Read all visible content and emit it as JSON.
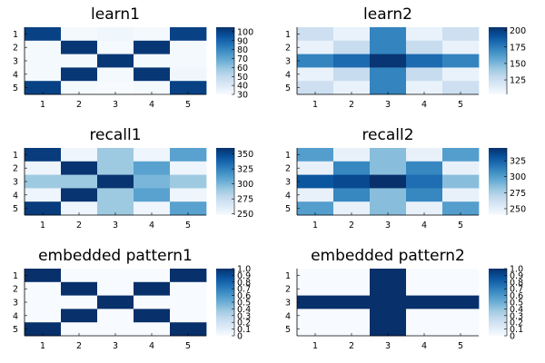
{
  "chart_data": [
    {
      "type": "heatmap",
      "title": "learn1",
      "x": [
        1,
        2,
        3,
        4,
        5
      ],
      "y": [
        1,
        2,
        3,
        4,
        5
      ],
      "z": [
        [
          100,
          31,
          33,
          31,
          100
        ],
        [
          31,
          103,
          31,
          103,
          31
        ],
        [
          31,
          31,
          103,
          31,
          31
        ],
        [
          31,
          103,
          31,
          103,
          33
        ],
        [
          100,
          31,
          30,
          31,
          100
        ]
      ],
      "clim": [
        30,
        105
      ],
      "colorbar_ticks": [
        30,
        40,
        50,
        60,
        70,
        80,
        90,
        100
      ],
      "colormap": "Blues"
    },
    {
      "type": "heatmap",
      "title": "learn2",
      "x": [
        1,
        2,
        3,
        4,
        5
      ],
      "y": [
        1,
        2,
        3,
        4,
        5
      ],
      "z": [
        [
          125,
          110,
          172,
          110,
          125
        ],
        [
          110,
          128,
          172,
          128,
          110
        ],
        [
          172,
          182,
          203,
          182,
          172
        ],
        [
          110,
          128,
          172,
          128,
          110
        ],
        [
          125,
          110,
          172,
          110,
          125
        ]
      ],
      "clim": [
        103,
        205
      ],
      "colorbar_ticks": [
        125,
        150,
        175,
        200
      ],
      "colormap": "Blues"
    },
    {
      "type": "heatmap",
      "title": "recall1",
      "x": [
        1,
        2,
        3,
        4,
        5
      ],
      "y": [
        1,
        2,
        3,
        4,
        5
      ],
      "z": [
        [
          355,
          253,
          290,
          253,
          310
        ],
        [
          253,
          358,
          290,
          310,
          253
        ],
        [
          290,
          290,
          358,
          300,
          290
        ],
        [
          253,
          358,
          290,
          310,
          253
        ],
        [
          355,
          253,
          290,
          253,
          310
        ]
      ],
      "clim": [
        248,
        360
      ],
      "colorbar_ticks": [
        250,
        275,
        300,
        325,
        350
      ],
      "colormap": "Blues"
    },
    {
      "type": "heatmap",
      "title": "recall2",
      "x": [
        1,
        2,
        3,
        4,
        5
      ],
      "y": [
        1,
        2,
        3,
        4,
        5
      ],
      "z": [
        [
          300,
          248,
          285,
          248,
          300
        ],
        [
          248,
          310,
          285,
          310,
          248
        ],
        [
          330,
          335,
          345,
          320,
          285
        ],
        [
          248,
          310,
          285,
          310,
          248
        ],
        [
          300,
          248,
          285,
          248,
          300
        ]
      ],
      "clim": [
        240,
        345
      ],
      "colorbar_ticks": [
        250,
        275,
        300,
        325
      ],
      "colormap": "Blues"
    },
    {
      "type": "heatmap",
      "title": "embedded pattern1",
      "x": [
        1,
        2,
        3,
        4,
        5
      ],
      "y": [
        1,
        2,
        3,
        4,
        5
      ],
      "z": [
        [
          1,
          0,
          0,
          0,
          1
        ],
        [
          0,
          1,
          0,
          1,
          0
        ],
        [
          0,
          0,
          1,
          0,
          0
        ],
        [
          0,
          1,
          0,
          1,
          0
        ],
        [
          1,
          0,
          0,
          0,
          1
        ]
      ],
      "clim": [
        0,
        1
      ],
      "colorbar_ticks": [
        0,
        0.1,
        0.2,
        0.3,
        0.4,
        0.5,
        0.6,
        0.7,
        0.8,
        0.9,
        1.0
      ],
      "colorbar_tick_labels": [
        "0",
        "0.1",
        "0.2",
        "0.3",
        "0.4",
        "0.5",
        "0.6",
        "0.7",
        "0.8",
        "0.9",
        "1.0"
      ],
      "colormap": "Blues"
    },
    {
      "type": "heatmap",
      "title": "embedded pattern2",
      "x": [
        1,
        2,
        3,
        4,
        5
      ],
      "y": [
        1,
        2,
        3,
        4,
        5
      ],
      "z": [
        [
          0,
          0,
          1,
          0,
          0
        ],
        [
          0,
          0,
          1,
          0,
          0
        ],
        [
          1,
          1,
          1,
          1,
          1
        ],
        [
          0,
          0,
          1,
          0,
          0
        ],
        [
          0,
          0,
          1,
          0,
          0
        ]
      ],
      "clim": [
        0,
        1
      ],
      "colorbar_ticks": [
        0,
        0.1,
        0.2,
        0.3,
        0.4,
        0.5,
        0.6,
        0.7,
        0.8,
        0.9,
        1.0
      ],
      "colorbar_tick_labels": [
        "0",
        "0.1",
        "0.2",
        "0.3",
        "0.4",
        "0.5",
        "0.6",
        "0.7",
        "0.8",
        "0.9",
        "1.0"
      ],
      "colormap": "Blues"
    }
  ]
}
